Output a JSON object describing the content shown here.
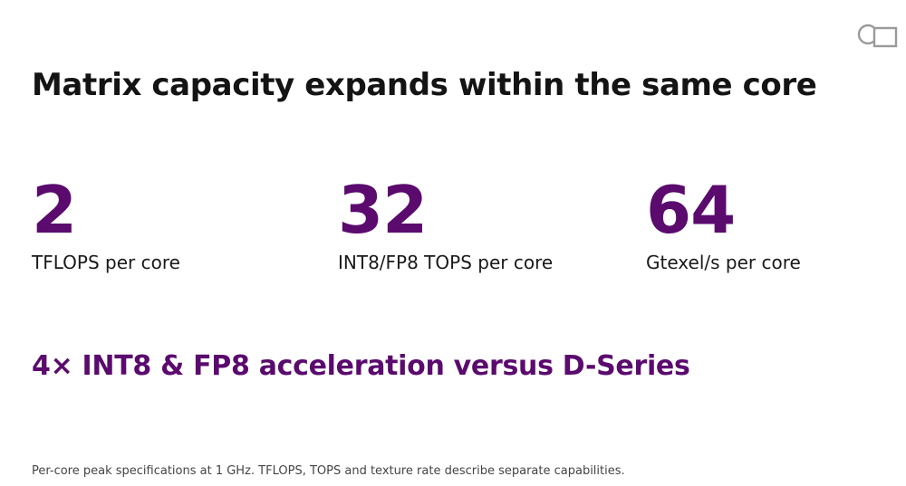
{
  "brand": {
    "logo_icon": "overlapping-circle-square-logo",
    "logo_color": "#9a9a9a"
  },
  "slide": {
    "title": "Matrix capacity expands within the same core",
    "stats": [
      {
        "value": "2",
        "label": "TFLOPS per core"
      },
      {
        "value": "32",
        "label": "INT8/FP8 TOPS per core"
      },
      {
        "value": "64",
        "label": "Gtexel/s per core"
      }
    ],
    "highlight": "4× INT8 & FP8 acceleration versus D-Series",
    "footnote": "Per-core peak specifications at 1 GHz. TFLOPS, TOPS and texture rate describe separate capabilities."
  },
  "colors": {
    "accent": "#5b0a6e",
    "text": "#141414"
  }
}
